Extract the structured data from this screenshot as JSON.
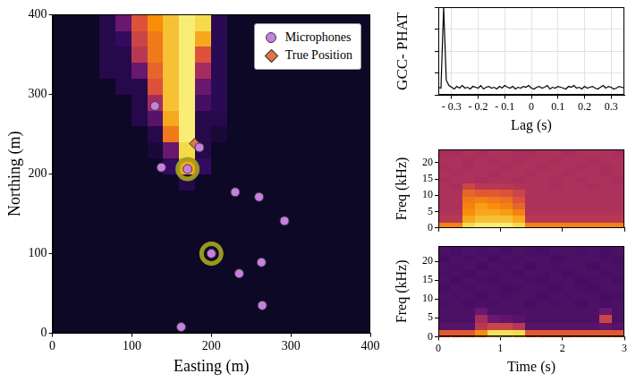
{
  "chart_data": [
    {
      "type": "scatter",
      "xlabel": "Easting (m)",
      "ylabel": "Northing (m)",
      "xlim": [
        0,
        400
      ],
      "ylim": [
        0,
        400
      ],
      "xticks": [
        0,
        100,
        200,
        300,
        400
      ],
      "yticks": [
        0,
        100,
        200,
        300,
        400
      ],
      "grid": false,
      "legend": "upper right",
      "heatmap": {
        "x": [
          10,
          30,
          50,
          70,
          90,
          110,
          130,
          150,
          170,
          190,
          210,
          230,
          250,
          270,
          290,
          310,
          330,
          350,
          370,
          390
        ],
        "y": [
          10,
          30,
          50,
          70,
          90,
          110,
          130,
          150,
          170,
          190,
          210,
          230,
          250,
          270,
          290,
          310,
          330,
          350,
          370,
          390
        ],
        "values": [
          [
            0,
            0,
            0,
            0,
            0,
            0,
            0,
            0,
            0,
            0,
            0,
            0,
            0,
            0,
            0,
            0,
            0,
            0,
            0,
            0
          ],
          [
            0,
            0,
            0,
            0,
            0,
            0,
            0,
            0,
            0,
            0,
            0,
            0,
            0,
            0,
            0,
            0,
            0,
            0,
            0,
            0
          ],
          [
            0,
            0,
            0,
            0,
            0,
            0,
            0,
            0,
            0,
            0,
            0,
            0,
            0,
            0,
            0,
            0,
            0,
            0,
            0,
            0
          ],
          [
            0,
            0,
            0,
            0,
            0,
            0,
            0,
            0,
            0,
            0,
            0,
            0,
            0,
            0,
            0,
            0,
            0,
            0,
            0,
            0
          ],
          [
            0,
            0,
            0,
            0,
            0,
            0,
            0,
            0,
            0,
            0,
            0,
            0,
            0,
            0,
            0,
            0,
            0,
            0,
            0,
            0
          ],
          [
            0,
            0,
            0,
            0,
            0,
            0,
            0,
            0,
            0,
            0,
            0,
            0,
            0,
            0,
            0,
            0,
            0,
            0,
            0,
            0
          ],
          [
            0,
            0,
            0,
            0,
            0,
            0,
            0,
            0,
            0,
            0,
            0,
            0,
            0,
            0,
            0,
            0,
            0,
            0,
            0,
            0
          ],
          [
            0,
            0,
            0,
            0,
            0,
            0,
            0,
            0,
            0,
            0,
            0,
            0,
            0,
            0,
            0,
            0,
            0,
            0,
            0,
            0
          ],
          [
            0,
            0,
            0,
            0,
            0,
            0,
            0,
            0,
            0,
            0,
            0,
            0,
            0,
            0,
            0,
            0,
            0,
            0,
            0,
            0
          ],
          [
            0,
            0,
            0,
            0,
            0,
            0,
            0,
            0,
            0.1,
            0,
            0,
            0,
            0,
            0,
            0,
            0,
            0,
            0,
            0,
            0
          ],
          [
            0,
            0,
            0,
            0,
            0,
            0,
            0,
            0.15,
            0.8,
            0.15,
            0,
            0,
            0,
            0,
            0,
            0,
            0,
            0,
            0,
            0
          ],
          [
            0,
            0,
            0,
            0,
            0,
            0,
            0.05,
            0.3,
            0.9,
            0.1,
            0,
            0,
            0,
            0,
            0,
            0,
            0,
            0,
            0,
            0
          ],
          [
            0,
            0,
            0,
            0,
            0,
            0,
            0.1,
            0.7,
            0.95,
            0.1,
            0.05,
            0,
            0,
            0,
            0,
            0,
            0,
            0,
            0,
            0
          ],
          [
            0,
            0,
            0,
            0,
            0,
            0.1,
            0.25,
            0.8,
            0.95,
            0.1,
            0.1,
            0,
            0,
            0,
            0,
            0,
            0,
            0,
            0,
            0
          ],
          [
            0,
            0,
            0,
            0,
            0,
            0.1,
            0.45,
            0.85,
            0.95,
            0.2,
            0.12,
            0,
            0,
            0,
            0,
            0,
            0,
            0,
            0,
            0
          ],
          [
            0,
            0,
            0,
            0,
            0.1,
            0.1,
            0.6,
            0.85,
            0.95,
            0.3,
            0.12,
            0,
            0,
            0,
            0,
            0,
            0,
            0,
            0,
            0
          ],
          [
            0,
            0,
            0,
            0.1,
            0.1,
            0.3,
            0.65,
            0.85,
            0.95,
            0.45,
            0.12,
            0,
            0,
            0,
            0,
            0,
            0,
            0,
            0,
            0
          ],
          [
            0,
            0,
            0,
            0.1,
            0.1,
            0.5,
            0.7,
            0.85,
            0.95,
            0.6,
            0.12,
            0,
            0,
            0,
            0,
            0,
            0,
            0,
            0,
            0
          ],
          [
            0,
            0,
            0,
            0.1,
            0.15,
            0.55,
            0.7,
            0.85,
            0.95,
            0.8,
            0.12,
            0,
            0,
            0,
            0,
            0,
            0,
            0,
            0,
            0
          ],
          [
            0,
            0,
            0,
            0.1,
            0.3,
            0.6,
            0.75,
            0.85,
            0.95,
            0.9,
            0.12,
            0,
            0,
            0,
            0,
            0,
            0,
            0,
            0,
            0
          ]
        ]
      },
      "series": [
        {
          "name": "Microphones",
          "color": "#c87fe0",
          "marker": "circle",
          "x": [
            129,
            137,
            170,
            185,
            230,
            260,
            292,
            200,
            263,
            235,
            264,
            162
          ],
          "y": [
            285,
            208,
            206,
            233,
            177,
            171,
            141,
            100,
            89,
            75,
            35,
            8
          ],
          "highlighted": [
            false,
            false,
            true,
            false,
            false,
            false,
            false,
            true,
            false,
            false,
            false,
            false
          ]
        },
        {
          "name": "True Position",
          "color": "#e0744a",
          "marker": "diamond",
          "x": [
            179
          ],
          "y": [
            238
          ]
        }
      ]
    },
    {
      "type": "line",
      "ylabel": "GCC- PHAT",
      "xlabel": "Lag (s)",
      "xlim": [
        -0.35,
        0.35
      ],
      "xticks": [
        {
          "value": -0.3,
          "label": "- 0.3"
        },
        {
          "value": -0.2,
          "label": "- 0.2"
        },
        {
          "value": -0.1,
          "label": "- 0.1"
        },
        0,
        0.1,
        0.2,
        0.3
      ],
      "ylim": [
        0,
        1
      ],
      "yticks": [
        0,
        0.25,
        0.5,
        0.75,
        1
      ],
      "grid": true,
      "tick_labels": "x",
      "color": "#000000",
      "x": [
        -0.35,
        -0.34,
        -0.33,
        -0.32,
        -0.31,
        -0.3,
        -0.29,
        -0.28,
        -0.27,
        -0.26,
        -0.25,
        -0.24,
        -0.23,
        -0.22,
        -0.21,
        -0.2,
        -0.19,
        -0.18,
        -0.17,
        -0.16,
        -0.15,
        -0.14,
        -0.13,
        -0.12,
        -0.11,
        -0.1,
        -0.09,
        -0.08,
        -0.07,
        -0.06,
        -0.05,
        -0.04,
        -0.03,
        -0.02,
        -0.01,
        0,
        0.01,
        0.02,
        0.03,
        0.04,
        0.05,
        0.06,
        0.07,
        0.08,
        0.09,
        0.1,
        0.11,
        0.12,
        0.13,
        0.14,
        0.15,
        0.16,
        0.17,
        0.18,
        0.19,
        0.2,
        0.21,
        0.22,
        0.23,
        0.24,
        0.25,
        0.26,
        0.27,
        0.28,
        0.29,
        0.3,
        0.31,
        0.32,
        0.33,
        0.34,
        0.35
      ],
      "values": [
        0.09,
        0.08,
        1.0,
        0.17,
        0.11,
        0.09,
        0.07,
        0.1,
        0.08,
        0.11,
        0.08,
        0.09,
        0.07,
        0.1,
        0.09,
        0.08,
        0.11,
        0.07,
        0.09,
        0.1,
        0.08,
        0.09,
        0.07,
        0.1,
        0.08,
        0.11,
        0.09,
        0.08,
        0.1,
        0.07,
        0.09,
        0.08,
        0.1,
        0.09,
        0.11,
        0.08,
        0.07,
        0.09,
        0.1,
        0.08,
        0.09,
        0.11,
        0.07,
        0.09,
        0.08,
        0.1,
        0.09,
        0.08,
        0.07,
        0.1,
        0.09,
        0.11,
        0.08,
        0.09,
        0.07,
        0.1,
        0.08,
        0.09,
        0.1,
        0.08,
        0.07,
        0.09,
        0.11,
        0.08,
        0.1,
        0.09,
        0.07,
        0.08,
        0.1,
        0.09,
        0.08
      ]
    },
    {
      "type": "heatmap",
      "ylabel": "Freq (kHz)",
      "xlim": [
        0,
        3
      ],
      "xticks": [
        0,
        1,
        2,
        3
      ],
      "ylim": [
        0,
        24
      ],
      "yticks": [
        0,
        5,
        10,
        15,
        20
      ],
      "tick_labels": "y",
      "x": [
        0.1,
        0.3,
        0.5,
        0.7,
        0.9,
        1.1,
        1.3,
        1.5,
        1.7,
        1.9,
        2.1,
        2.3,
        2.5,
        2.7,
        2.9
      ],
      "y": [
        1,
        3,
        5,
        7,
        9,
        11,
        13,
        15,
        17,
        19,
        21,
        23
      ],
      "values": [
        [
          0.72,
          0.72,
          0.9,
          0.95,
          0.95,
          0.95,
          0.9,
          0.72,
          0.72,
          0.72,
          0.72,
          0.72,
          0.72,
          0.72,
          0.72
        ],
        [
          0.5,
          0.5,
          0.8,
          0.85,
          0.85,
          0.85,
          0.8,
          0.5,
          0.5,
          0.5,
          0.5,
          0.5,
          0.5,
          0.5,
          0.5
        ],
        [
          0.48,
          0.48,
          0.75,
          0.8,
          0.8,
          0.78,
          0.72,
          0.48,
          0.48,
          0.48,
          0.48,
          0.48,
          0.48,
          0.48,
          0.48
        ],
        [
          0.47,
          0.47,
          0.72,
          0.78,
          0.75,
          0.72,
          0.65,
          0.47,
          0.47,
          0.47,
          0.47,
          0.47,
          0.47,
          0.47,
          0.47
        ],
        [
          0.47,
          0.47,
          0.7,
          0.72,
          0.7,
          0.68,
          0.6,
          0.47,
          0.47,
          0.47,
          0.47,
          0.47,
          0.47,
          0.47,
          0.47
        ],
        [
          0.47,
          0.47,
          0.65,
          0.62,
          0.62,
          0.6,
          0.55,
          0.47,
          0.47,
          0.47,
          0.47,
          0.47,
          0.47,
          0.47,
          0.47
        ],
        [
          0.47,
          0.46,
          0.55,
          0.5,
          0.5,
          0.5,
          0.48,
          0.47,
          0.47,
          0.46,
          0.47,
          0.47,
          0.46,
          0.47,
          0.47
        ],
        [
          0.46,
          0.47,
          0.47,
          0.46,
          0.47,
          0.47,
          0.46,
          0.47,
          0.47,
          0.46,
          0.47,
          0.46,
          0.47,
          0.47,
          0.46
        ],
        [
          0.47,
          0.46,
          0.47,
          0.47,
          0.46,
          0.47,
          0.47,
          0.46,
          0.47,
          0.47,
          0.46,
          0.47,
          0.47,
          0.46,
          0.47
        ],
        [
          0.46,
          0.47,
          0.46,
          0.47,
          0.47,
          0.46,
          0.47,
          0.47,
          0.46,
          0.47,
          0.47,
          0.46,
          0.47,
          0.46,
          0.47
        ],
        [
          0.47,
          0.47,
          0.46,
          0.47,
          0.46,
          0.47,
          0.46,
          0.47,
          0.47,
          0.46,
          0.47,
          0.47,
          0.46,
          0.47,
          0.47
        ],
        [
          0.46,
          0.46,
          0.47,
          0.46,
          0.47,
          0.47,
          0.46,
          0.46,
          0.47,
          0.47,
          0.46,
          0.47,
          0.47,
          0.47,
          0.46
        ]
      ]
    },
    {
      "type": "heatmap",
      "xlabel": "Time (s)",
      "ylabel": "Freq (kHz)",
      "xlim": [
        0,
        3
      ],
      "xticks": [
        0,
        1,
        2,
        3
      ],
      "ylim": [
        0,
        24
      ],
      "yticks": [
        0,
        5,
        10,
        15,
        20
      ],
      "x": [
        0.1,
        0.3,
        0.5,
        0.7,
        0.9,
        1.1,
        1.3,
        1.5,
        1.7,
        1.9,
        2.1,
        2.3,
        2.5,
        2.7,
        2.9
      ],
      "y": [
        1,
        3,
        5,
        7,
        9,
        11,
        13,
        15,
        17,
        19,
        21,
        23
      ],
      "values": [
        [
          0.62,
          0.62,
          0.62,
          0.75,
          0.92,
          0.92,
          0.9,
          0.62,
          0.62,
          0.62,
          0.62,
          0.62,
          0.62,
          0.62,
          0.62
        ],
        [
          0.25,
          0.25,
          0.25,
          0.5,
          0.55,
          0.55,
          0.5,
          0.25,
          0.25,
          0.25,
          0.25,
          0.25,
          0.25,
          0.28,
          0.25
        ],
        [
          0.22,
          0.22,
          0.22,
          0.45,
          0.3,
          0.28,
          0.25,
          0.22,
          0.22,
          0.22,
          0.22,
          0.22,
          0.22,
          0.55,
          0.22
        ],
        [
          0.22,
          0.22,
          0.22,
          0.3,
          0.22,
          0.22,
          0.22,
          0.22,
          0.22,
          0.22,
          0.22,
          0.22,
          0.22,
          0.3,
          0.22
        ],
        [
          0.21,
          0.22,
          0.2,
          0.22,
          0.21,
          0.22,
          0.22,
          0.2,
          0.22,
          0.21,
          0.22,
          0.2,
          0.22,
          0.21,
          0.22
        ],
        [
          0.22,
          0.21,
          0.22,
          0.2,
          0.22,
          0.21,
          0.22,
          0.22,
          0.2,
          0.22,
          0.21,
          0.22,
          0.22,
          0.2,
          0.21
        ],
        [
          0.2,
          0.22,
          0.21,
          0.22,
          0.22,
          0.2,
          0.21,
          0.22,
          0.22,
          0.2,
          0.22,
          0.21,
          0.2,
          0.22,
          0.22
        ],
        [
          0.22,
          0.2,
          0.22,
          0.21,
          0.2,
          0.22,
          0.22,
          0.21,
          0.2,
          0.22,
          0.22,
          0.2,
          0.21,
          0.22,
          0.2
        ],
        [
          0.21,
          0.22,
          0.2,
          0.22,
          0.21,
          0.22,
          0.2,
          0.22,
          0.21,
          0.22,
          0.2,
          0.22,
          0.22,
          0.21,
          0.22
        ],
        [
          0.22,
          0.21,
          0.22,
          0.2,
          0.22,
          0.21,
          0.22,
          0.2,
          0.22,
          0.21,
          0.22,
          0.22,
          0.2,
          0.22,
          0.21
        ],
        [
          0.2,
          0.22,
          0.21,
          0.22,
          0.2,
          0.22,
          0.21,
          0.22,
          0.22,
          0.2,
          0.21,
          0.22,
          0.22,
          0.21,
          0.2
        ],
        [
          0.22,
          0.2,
          0.22,
          0.21,
          0.22,
          0.2,
          0.22,
          0.21,
          0.2,
          0.22,
          0.22,
          0.21,
          0.22,
          0.2,
          0.22
        ]
      ]
    }
  ]
}
